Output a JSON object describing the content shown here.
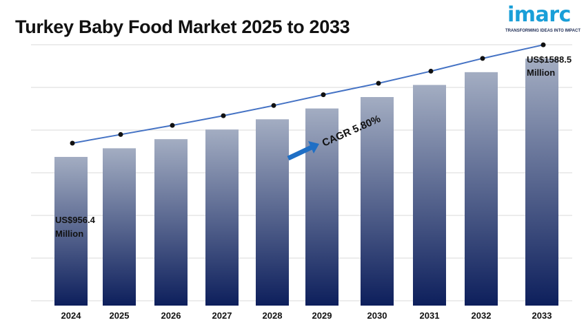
{
  "title": "Turkey Baby Food Market 2025 to 2033",
  "logo": {
    "word": "imarc",
    "tagline": "TRANSFORMING IDEAS INTO IMPACT",
    "color": "#1a9fd8"
  },
  "chart_data": {
    "type": "bar",
    "title": "Turkey Baby Food Market 2025 to 2033",
    "xlabel": "",
    "ylabel": "",
    "categories": [
      "2024",
      "2025",
      "2026",
      "2027",
      "2028",
      "2029",
      "2030",
      "2031",
      "2032",
      "2033"
    ],
    "values": [
      956.4,
      1011.9,
      1070.6,
      1132.7,
      1198.4,
      1267.9,
      1341.4,
      1419.2,
      1501.5,
      1588.5
    ],
    "line_overlay": [
      956.4,
      1011.9,
      1070.6,
      1132.7,
      1198.4,
      1267.9,
      1341.4,
      1419.2,
      1501.5,
      1588.5
    ],
    "ylim": [
      0,
      1700
    ],
    "grid": true,
    "annotations": {
      "start_line1": "US$956.4",
      "start_line2": "Million",
      "end_line1": "US$1588.5",
      "end_line2": "Million",
      "cagr": "CAGR 5.80%"
    },
    "colors": {
      "bar_top": "#a3adc2",
      "bar_bottom": "#0d1f5c",
      "line": "#4472c4",
      "marker": "#111111",
      "arrow": "#1f6fc5",
      "grid": "#d9d9d9"
    }
  }
}
